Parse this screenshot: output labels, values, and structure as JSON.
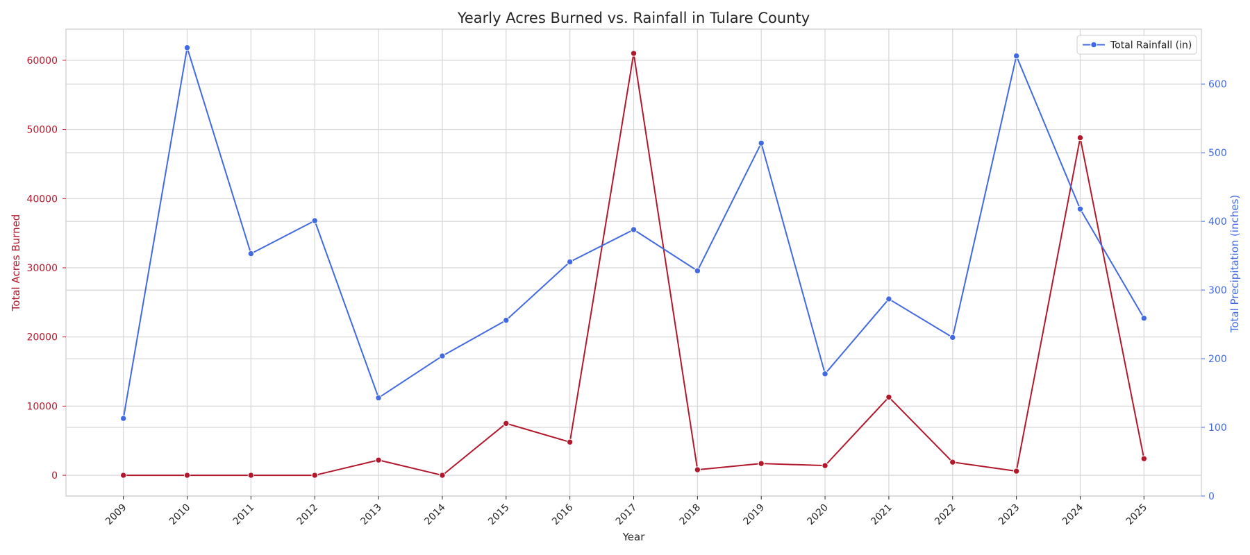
{
  "chart_data": {
    "type": "line",
    "title": "Yearly Acres Burned vs. Rainfall in Tulare County",
    "xlabel": "Year",
    "ylabel_left": "Total Acres Burned",
    "ylabel_right": "Total Precipitation (inches)",
    "x": [
      2009,
      2010,
      2011,
      2012,
      2013,
      2014,
      2015,
      2016,
      2017,
      2018,
      2019,
      2020,
      2021,
      2022,
      2023,
      2024,
      2025
    ],
    "ylim_left": [
      -3000,
      64500
    ],
    "ylim_right": [
      0,
      680
    ],
    "yticks_left": [
      0,
      10000,
      20000,
      30000,
      40000,
      50000,
      60000
    ],
    "yticks_right": [
      0,
      100,
      200,
      300,
      400,
      500,
      600
    ],
    "grid": true,
    "legend": {
      "placement": "top-right",
      "entries": [
        "Total Rainfall (in)"
      ]
    },
    "series": [
      {
        "name": "",
        "axis": "left",
        "color": "#b2182b",
        "values": [
          0,
          0,
          0,
          0,
          2200,
          0,
          7500,
          4800,
          61000,
          800,
          1700,
          1400,
          11300,
          1900,
          600,
          48800,
          2400
        ]
      },
      {
        "name": "Total Rainfall (in)",
        "axis": "right",
        "color": "#4169e1",
        "values": [
          113,
          653,
          353,
          401,
          143,
          204,
          256,
          341,
          388,
          328,
          514,
          178,
          287,
          231,
          641,
          418,
          259
        ]
      }
    ]
  }
}
